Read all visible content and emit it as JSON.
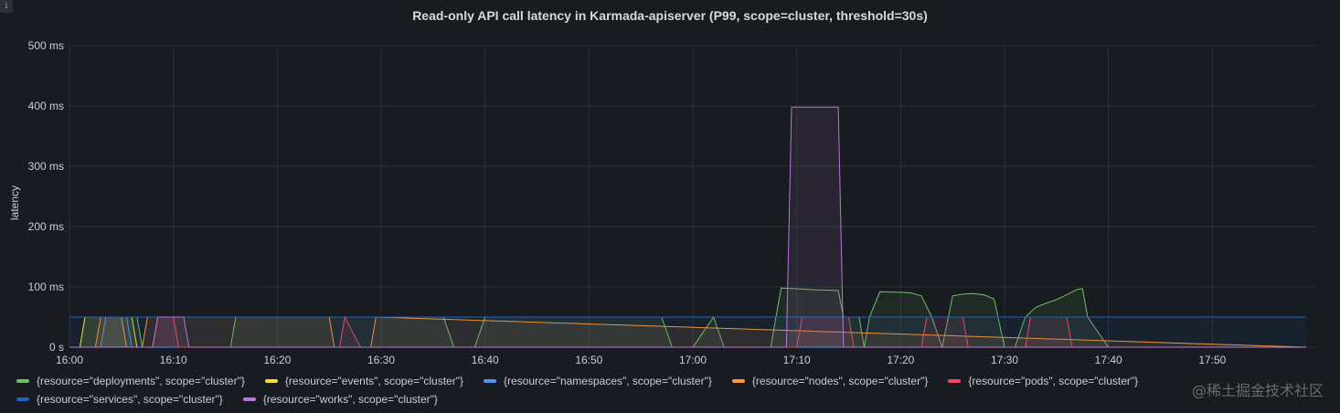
{
  "panel": {
    "title": "Read-only API call latency in Karmada-apiserver (P99, scope=cluster, threshold=30s)",
    "info_icon": "i",
    "watermark": "@稀土掘金技术社区"
  },
  "chart_data": {
    "type": "line",
    "title": "Read-only API call latency in Karmada-apiserver (P99, scope=cluster, threshold=30s)",
    "xlabel": "",
    "ylabel": "latency",
    "ylim": [
      0,
      500
    ],
    "yticks": [
      0,
      100,
      200,
      300,
      400,
      500
    ],
    "ytick_labels": [
      "0 s",
      "100 ms",
      "200 ms",
      "300 ms",
      "400 ms",
      "500 ms"
    ],
    "xlim": [
      "16:00",
      "17:59"
    ],
    "xticks": [
      "16:00",
      "16:10",
      "16:20",
      "16:30",
      "16:40",
      "16:50",
      "17:00",
      "17:10",
      "17:20",
      "17:30",
      "17:40",
      "17:50"
    ],
    "grid": true,
    "legend_position": "bottom",
    "series": [
      {
        "name": "{resource=\"deployments\", scope=\"cluster\"}",
        "color": "#73bf69",
        "x": [
          "16:00",
          "16:01",
          "16:01.5",
          "16:02",
          "16:03.5",
          "16:04",
          "16:06.5",
          "16:07",
          "16:15.5",
          "16:16",
          "16:23.5",
          "16:24",
          "16:26",
          "16:28",
          "16:30",
          "16:32",
          "16:36",
          "16:37",
          "16:39",
          "16:40",
          "16:47",
          "16:49",
          "16:52",
          "16:57",
          "16:58",
          "17:00",
          "17:02",
          "17:03",
          "17:07.5",
          "17:08",
          "17:08.5",
          "17:10",
          "17:12",
          "17:14",
          "17:14.5",
          "17:15",
          "17:16",
          "17:16.5",
          "17:17",
          "17:18",
          "17:20",
          "17:21",
          "17:22",
          "17:23",
          "17:24",
          "17:25",
          "17:26",
          "17:27",
          "17:28",
          "17:29",
          "17:30",
          "17:31",
          "17:32",
          "17:33",
          "17:34",
          "17:35",
          "17:36",
          "17:37",
          "17:37.5",
          "17:38",
          "17:40",
          "17:59"
        ],
        "values": [
          0,
          0,
          50,
          50,
          50,
          50,
          50,
          0,
          0,
          50,
          50,
          50,
          50,
          50,
          50,
          50,
          50,
          0,
          0,
          50,
          50,
          50,
          50,
          50,
          0,
          0,
          50,
          0,
          0,
          50,
          98,
          97,
          95,
          94,
          50,
          50,
          50,
          0,
          50,
          92,
          91,
          90,
          85,
          50,
          0,
          85,
          88,
          89,
          87,
          80,
          0,
          0,
          50,
          66,
          73,
          79,
          87,
          96,
          97,
          50,
          0,
          0
        ]
      },
      {
        "name": "{resource=\"events\", scope=\"cluster\"}",
        "color": "#fade2a",
        "x": [
          "16:00",
          "16:01",
          "16:01.5",
          "16:02",
          "16:04",
          "16:04.5",
          "16:06",
          "16:06.5",
          "17:59"
        ],
        "values": [
          0,
          0,
          50,
          50,
          50,
          50,
          50,
          0,
          0
        ]
      },
      {
        "name": "{resource=\"namespaces\", scope=\"cluster\"}",
        "color": "#5794f2",
        "x": [
          "16:00",
          "16:03",
          "16:03.5",
          "16:05",
          "16:05.5",
          "16:06",
          "17:59"
        ],
        "values": [
          0,
          0,
          50,
          50,
          50,
          0,
          0
        ]
      },
      {
        "name": "{resource=\"nodes\", scope=\"cluster\"}",
        "color": "#ff9830",
        "x": [
          "16:00",
          "16:02.5",
          "16:03",
          "16:05",
          "16:05.5",
          "16:07",
          "16:07.5",
          "16:25",
          "16:25.5",
          "16:29",
          "16:29.5",
          "17:59"
        ],
        "values": [
          0,
          0,
          50,
          50,
          0,
          0,
          50,
          50,
          0,
          0,
          50,
          0
        ]
      },
      {
        "name": "{resource=\"pods\", scope=\"cluster\"}",
        "color": "#f2495c",
        "x": [
          "16:00",
          "16:08",
          "16:08.5",
          "16:10",
          "16:10.5",
          "16:26",
          "16:26.5",
          "16:28",
          "17:10",
          "17:10.5",
          "17:15",
          "17:15.5",
          "17:22",
          "17:22.5",
          "17:26",
          "17:26.5",
          "17:32",
          "17:32.5",
          "17:36",
          "17:36.5",
          "17:59"
        ],
        "values": [
          0,
          0,
          50,
          50,
          0,
          0,
          50,
          0,
          0,
          50,
          50,
          0,
          0,
          50,
          50,
          0,
          0,
          50,
          50,
          0,
          0
        ]
      },
      {
        "name": "{resource=\"services\", scope=\"cluster\"}",
        "color": "#1f60c4",
        "x": [
          "16:00",
          "17:59"
        ],
        "values": [
          50,
          50
        ]
      },
      {
        "name": "{resource=\"works\", scope=\"cluster\"}",
        "color": "#b877d9",
        "x": [
          "16:00",
          "16:08",
          "16:08.5",
          "16:11",
          "16:11.5",
          "17:09",
          "17:09.5",
          "17:14",
          "17:14.5",
          "17:59"
        ],
        "values": [
          0,
          0,
          50,
          50,
          0,
          0,
          398,
          398,
          0,
          0
        ]
      }
    ]
  }
}
